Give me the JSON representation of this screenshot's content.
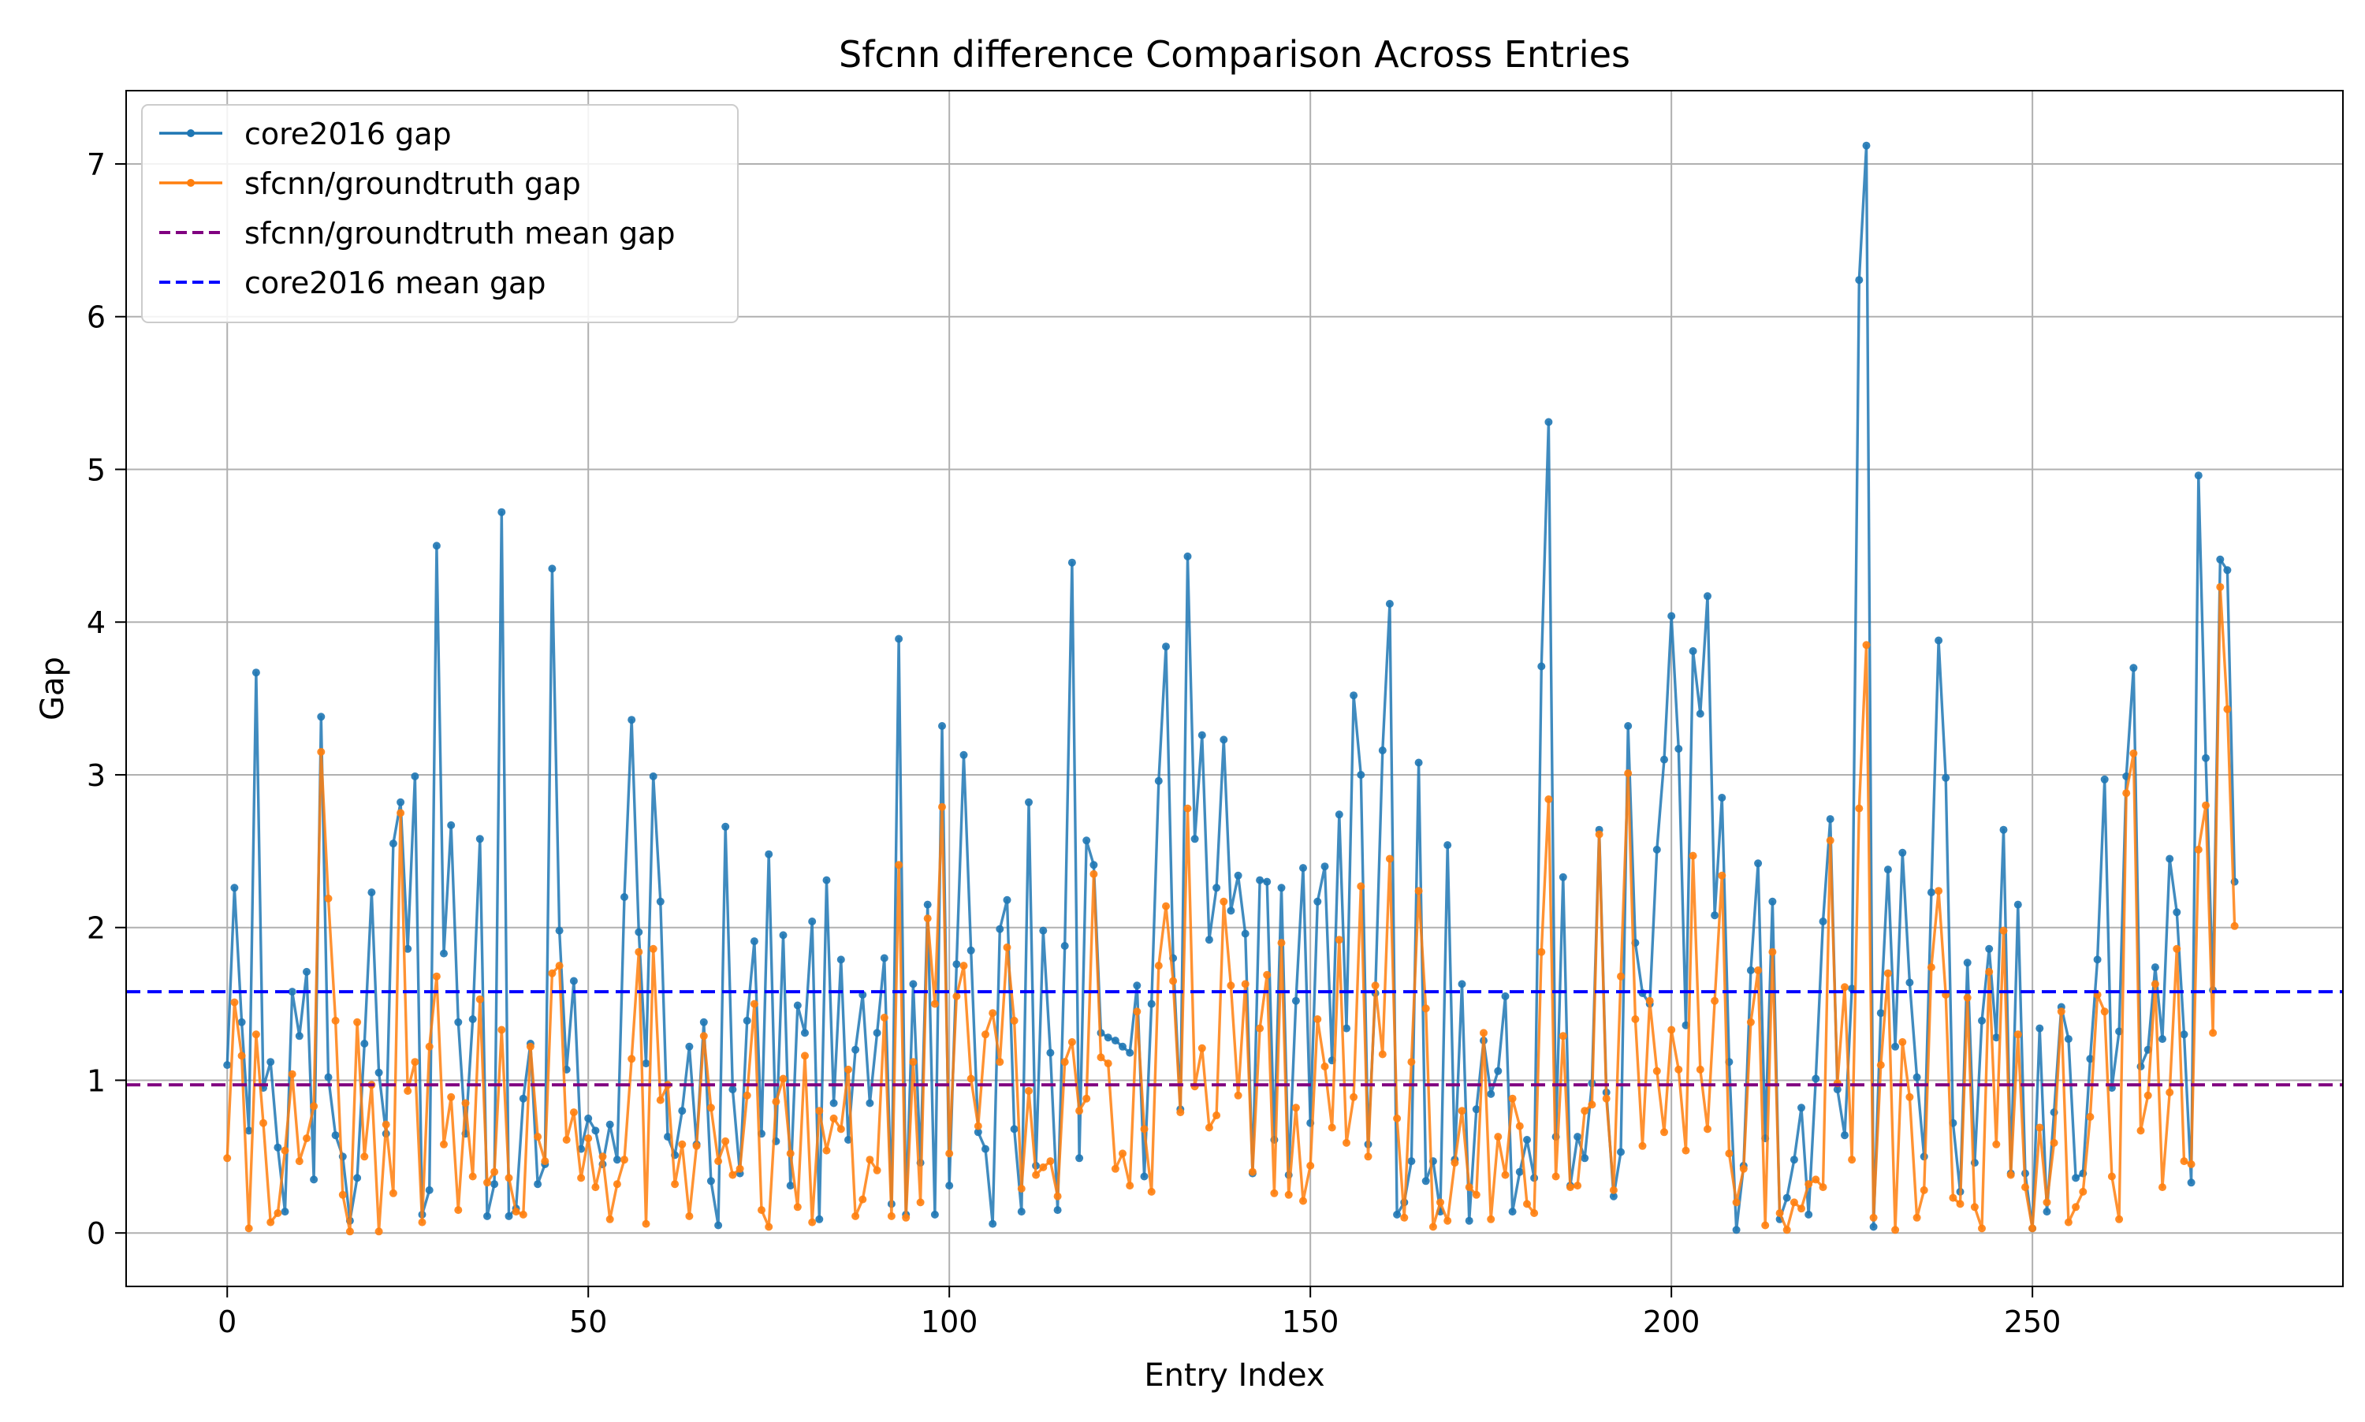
{
  "chart_data": {
    "type": "line",
    "title": "Sfcnn difference Comparison Across Entries",
    "xlabel": "Entry Index",
    "ylabel": "Gap",
    "xlim": [
      -14,
      293
    ],
    "ylim": [
      -0.35,
      7.48
    ],
    "x_ticks": [
      0,
      50,
      100,
      150,
      200,
      250
    ],
    "x_tick_labels": [
      "0",
      "50",
      "100",
      "150",
      "200",
      "250"
    ],
    "y_ticks": [
      0,
      1,
      2,
      3,
      4,
      5,
      6,
      7
    ],
    "y_tick_labels": [
      "0",
      "1",
      "2",
      "3",
      "4",
      "5",
      "6",
      "7"
    ],
    "grid": true,
    "legend": "top-left",
    "series": [
      {
        "name": "core2016 gap",
        "color": "#1f77b4",
        "values": [
          1.1,
          2.26,
          1.38,
          0.67,
          3.67,
          0.95,
          1.12,
          0.56,
          0.14,
          1.58,
          1.29,
          1.71,
          0.35,
          3.38,
          1.02,
          0.64,
          0.5,
          0.08,
          0.36,
          1.24,
          2.23,
          1.05,
          0.65,
          2.55,
          2.82,
          1.86,
          2.99,
          0.12,
          0.28,
          4.5,
          1.83,
          2.67,
          1.38,
          0.65,
          1.4,
          2.58,
          0.11,
          0.32,
          4.72,
          0.11,
          0.16,
          0.88,
          1.24,
          0.32,
          0.45,
          4.35,
          1.98,
          1.07,
          1.65,
          0.55,
          0.75,
          0.67,
          0.45,
          0.71,
          0.48,
          2.2,
          3.36,
          1.97,
          1.11,
          2.99,
          2.17,
          0.63,
          0.51,
          0.8,
          1.22,
          0.58,
          1.38,
          0.34,
          0.05,
          2.66,
          0.94,
          0.39,
          1.39,
          1.91,
          0.65,
          2.48,
          0.6,
          1.95,
          0.31,
          1.49,
          1.31,
          2.04,
          0.09,
          2.31,
          0.85,
          1.79,
          0.61,
          1.2,
          1.56,
          0.85,
          1.31,
          1.8,
          0.19,
          3.89,
          0.12,
          1.63,
          0.46,
          2.15,
          0.12,
          3.32,
          0.31,
          1.76,
          3.13,
          1.85,
          0.66,
          0.55,
          0.06,
          1.99,
          2.18,
          0.68,
          0.14,
          2.82,
          0.44,
          1.98,
          1.18,
          0.15,
          1.88,
          4.39,
          0.49,
          2.57,
          2.41,
          1.31,
          1.28,
          1.26,
          1.22,
          1.18,
          1.62,
          0.37,
          1.5,
          2.96,
          3.84,
          1.8,
          0.81,
          4.43,
          2.58,
          3.26,
          1.92,
          2.26,
          3.23,
          2.11,
          2.34,
          1.96,
          0.39,
          2.31,
          2.3,
          0.61,
          2.26,
          0.38,
          1.52,
          2.39,
          0.72,
          2.17,
          2.4,
          1.13,
          2.74,
          1.34,
          3.52,
          3.0,
          0.58,
          1.57,
          3.16,
          4.12,
          0.12,
          0.2,
          0.47,
          3.08,
          0.34,
          0.47,
          0.14,
          2.54,
          0.48,
          1.63,
          0.08,
          0.81,
          1.26,
          0.91,
          1.06,
          1.55,
          0.14,
          0.4,
          0.61,
          0.36,
          3.71,
          5.31,
          0.63,
          2.33,
          0.31,
          0.63,
          0.49,
          0.98,
          2.64,
          0.92,
          0.24,
          0.53,
          3.32,
          1.9,
          1.57,
          1.5,
          2.51,
          3.1,
          4.04,
          3.17,
          1.36,
          3.81,
          3.4,
          4.17,
          2.08,
          2.85,
          1.12,
          0.02,
          0.44,
          1.72,
          2.42,
          0.62,
          2.17,
          0.09,
          0.23,
          0.48,
          0.82,
          0.12,
          1.01,
          2.04,
          2.71,
          0.94,
          0.64,
          1.6,
          6.24,
          7.12,
          0.04,
          1.44,
          2.38,
          1.22,
          2.49,
          1.64,
          1.02,
          0.5,
          2.23,
          3.88,
          2.98,
          0.72,
          0.27,
          1.77,
          0.46,
          1.39,
          1.86,
          1.28,
          2.64,
          0.39,
          2.15,
          0.39,
          0.03,
          1.34,
          0.14,
          0.79,
          1.48,
          1.27,
          0.36,
          0.39,
          1.14,
          1.79,
          2.97,
          0.95,
          1.32,
          2.99,
          3.7,
          1.09,
          1.2,
          1.74,
          1.27,
          2.45,
          2.1,
          1.3,
          0.33,
          4.96,
          3.11,
          1.59,
          4.41,
          4.34,
          2.3
        ]
      },
      {
        "name": "sfcnn/groundtruth gap",
        "color": "#ff7f0e",
        "values": [
          0.49,
          1.51,
          1.16,
          0.03,
          1.3,
          0.72,
          0.07,
          0.13,
          0.54,
          1.04,
          0.47,
          0.62,
          0.83,
          3.15,
          2.19,
          1.39,
          0.25,
          0.01,
          1.38,
          0.5,
          0.97,
          0.01,
          0.71,
          0.26,
          2.75,
          0.93,
          1.12,
          0.07,
          1.22,
          1.68,
          0.58,
          0.89,
          0.15,
          0.85,
          0.37,
          1.53,
          0.33,
          0.4,
          1.33,
          0.36,
          0.14,
          0.12,
          1.22,
          0.63,
          0.47,
          1.7,
          1.75,
          0.61,
          0.79,
          0.36,
          0.62,
          0.3,
          0.5,
          0.09,
          0.32,
          0.48,
          1.14,
          1.84,
          0.06,
          1.86,
          0.87,
          0.97,
          0.32,
          0.58,
          0.11,
          0.57,
          1.29,
          0.82,
          0.47,
          0.6,
          0.38,
          0.42,
          0.9,
          1.5,
          0.15,
          0.04,
          0.86,
          1.01,
          0.52,
          0.17,
          1.16,
          0.07,
          0.8,
          0.54,
          0.75,
          0.68,
          1.07,
          0.11,
          0.22,
          0.48,
          0.41,
          1.41,
          0.11,
          2.41,
          0.1,
          1.12,
          0.2,
          2.06,
          1.5,
          2.79,
          0.52,
          1.55,
          1.75,
          1.01,
          0.7,
          1.3,
          1.44,
          1.12,
          1.87,
          1.39,
          0.29,
          0.93,
          0.38,
          0.43,
          0.47,
          0.24,
          1.12,
          1.25,
          0.8,
          0.88,
          2.35,
          1.15,
          1.11,
          0.42,
          0.52,
          0.31,
          1.45,
          0.68,
          0.27,
          1.75,
          2.14,
          1.65,
          0.79,
          2.78,
          0.96,
          1.21,
          0.69,
          0.77,
          2.17,
          1.62,
          0.9,
          1.63,
          0.4,
          1.34,
          1.69,
          0.26,
          1.9,
          0.25,
          0.82,
          0.21,
          0.44,
          1.4,
          1.09,
          0.69,
          1.92,
          0.59,
          0.89,
          2.27,
          0.5,
          1.62,
          1.17,
          2.45,
          0.75,
          0.1,
          1.12,
          2.24,
          1.47,
          0.04,
          0.2,
          0.08,
          0.46,
          0.8,
          0.3,
          0.25,
          1.31,
          0.09,
          0.63,
          0.38,
          0.88,
          0.7,
          0.19,
          0.13,
          1.84,
          2.84,
          0.37,
          1.29,
          0.3,
          0.31,
          0.8,
          0.84,
          2.61,
          0.88,
          0.28,
          1.68,
          3.01,
          1.4,
          0.57,
          1.52,
          1.06,
          0.66,
          1.33,
          1.07,
          0.54,
          2.47,
          1.07,
          0.68,
          1.52,
          2.34,
          0.52,
          0.2,
          0.42,
          1.38,
          1.72,
          0.05,
          1.84,
          0.13,
          0.02,
          0.2,
          0.16,
          0.32,
          0.35,
          0.3,
          2.57,
          0.98,
          1.61,
          0.48,
          2.78,
          3.85,
          0.1,
          1.1,
          1.7,
          0.02,
          1.25,
          0.89,
          0.1,
          0.28,
          1.74,
          2.24,
          1.56,
          0.23,
          0.19,
          1.54,
          0.17,
          0.03,
          1.71,
          0.58,
          1.98,
          0.38,
          1.3,
          0.3,
          0.03,
          0.69,
          0.2,
          0.59,
          1.45,
          0.07,
          0.17,
          0.27,
          0.76,
          1.56,
          1.45,
          0.37,
          0.09,
          2.88,
          3.14,
          0.67,
          0.9,
          1.63,
          0.3,
          0.92,
          1.86,
          0.47,
          0.45,
          2.51,
          2.8,
          1.31,
          4.23,
          3.43,
          2.01
        ]
      },
      {
        "name": "sfcnn/groundtruth mean gap",
        "color": "#800080",
        "style": "dashed",
        "constant": 0.97
      },
      {
        "name": "core2016 mean gap",
        "color": "#0000ff",
        "style": "dashed",
        "constant": 1.58
      }
    ]
  }
}
